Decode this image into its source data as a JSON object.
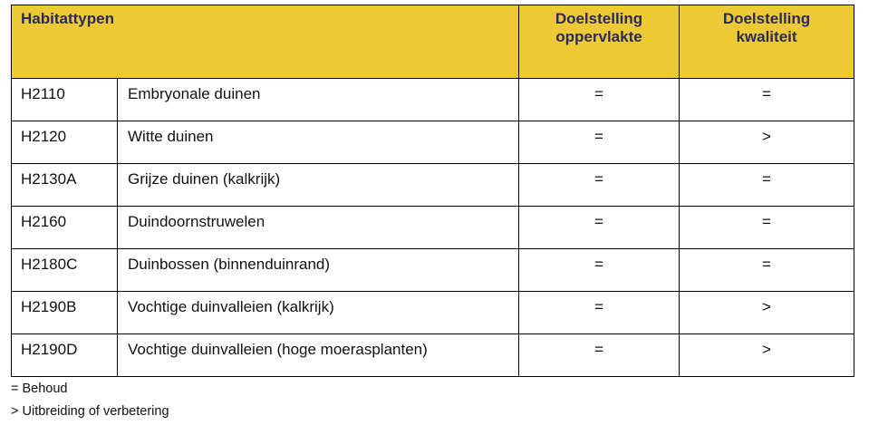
{
  "table": {
    "header": [
      "Habitattypen",
      "Doelstelling oppervlakte",
      "Doelstelling kwaliteit"
    ],
    "rows": [
      [
        "H2110",
        "Embryonale duinen",
        "=",
        "="
      ],
      [
        "H2120",
        "Witte duinen",
        "=",
        ">"
      ],
      [
        "H2130A",
        "Grijze duinen (kalkrijk)",
        "=",
        "="
      ],
      [
        "H2160",
        "Duindoornstruwelen",
        "=",
        "="
      ],
      [
        "H2180C",
        "Duinbossen (binnenduinrand)",
        "=",
        "="
      ],
      [
        "H2190B",
        "Vochtige duinvalleien (kalkrijk)",
        "=",
        ">"
      ],
      [
        "H2190D",
        "Vochtige duinvalleien (hoge moerasplanten)",
        "=",
        ">"
      ]
    ]
  },
  "notes": [
    "= Behoud",
    "> Uitbreiding of verbetering"
  ]
}
